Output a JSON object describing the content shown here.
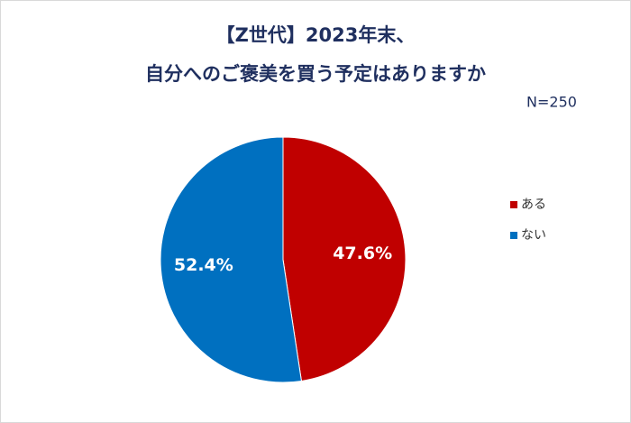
{
  "chart_data": {
    "type": "pie",
    "title": [
      "【Z世代】2023年末、",
      "自分へのご褒美を買う予定はありますか"
    ],
    "subtitle": "N=250",
    "categories": [
      "ある",
      "ない"
    ],
    "values": [
      47.6,
      52.4
    ],
    "value_labels": [
      "47.6%",
      "52.4%"
    ],
    "colors": [
      "#c00000",
      "#0070c0"
    ],
    "legend": "right"
  }
}
